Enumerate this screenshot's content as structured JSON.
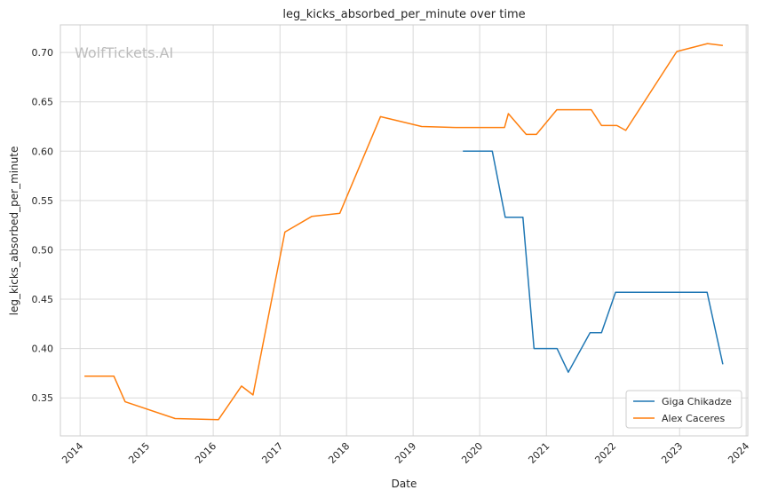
{
  "chart_data": {
    "type": "line",
    "title": "leg_kicks_absorbed_per_minute over time",
    "xlabel": "Date",
    "ylabel": "leg_kicks_absorbed_per_minute",
    "watermark": "WolfTickets.AI",
    "xlim": [
      "2013-09-15",
      "2024-01-10"
    ],
    "ylim": [
      0.3115,
      0.728
    ],
    "x_ticks": [
      "2014",
      "2015",
      "2016",
      "2017",
      "2018",
      "2019",
      "2020",
      "2021",
      "2022",
      "2023",
      "2024"
    ],
    "y_ticks": [
      "0.35",
      "0.40",
      "0.45",
      "0.50",
      "0.55",
      "0.60",
      "0.65",
      "0.70"
    ],
    "grid": true,
    "legend_position": "lower-right",
    "series": [
      {
        "name": "Giga Chikadze",
        "color": "#1f77b4",
        "points": [
          {
            "x": "2019-10-01",
            "y": 0.6
          },
          {
            "x": "2020-03-10",
            "y": 0.6
          },
          {
            "x": "2020-05-20",
            "y": 0.533
          },
          {
            "x": "2020-08-25",
            "y": 0.533
          },
          {
            "x": "2020-10-25",
            "y": 0.4
          },
          {
            "x": "2021-02-28",
            "y": 0.4
          },
          {
            "x": "2021-05-01",
            "y": 0.376
          },
          {
            "x": "2021-08-28",
            "y": 0.416
          },
          {
            "x": "2021-10-30",
            "y": 0.416
          },
          {
            "x": "2022-01-15",
            "y": 0.457
          },
          {
            "x": "2023-06-01",
            "y": 0.457
          },
          {
            "x": "2023-08-26",
            "y": 0.384
          }
        ]
      },
      {
        "name": "Alex Caceres",
        "color": "#ff7f0e",
        "points": [
          {
            "x": "2014-01-25",
            "y": 0.372
          },
          {
            "x": "2014-07-05",
            "y": 0.372
          },
          {
            "x": "2014-09-05",
            "y": 0.346
          },
          {
            "x": "2015-06-06",
            "y": 0.329
          },
          {
            "x": "2016-01-30",
            "y": 0.328
          },
          {
            "x": "2016-06-04",
            "y": 0.362
          },
          {
            "x": "2016-08-06",
            "y": 0.353
          },
          {
            "x": "2017-01-28",
            "y": 0.518
          },
          {
            "x": "2017-06-25",
            "y": 0.534
          },
          {
            "x": "2017-11-25",
            "y": 0.537
          },
          {
            "x": "2018-07-06",
            "y": 0.635
          },
          {
            "x": "2019-02-17",
            "y": 0.625
          },
          {
            "x": "2019-08-25",
            "y": 0.624
          },
          {
            "x": "2020-05-16",
            "y": 0.624
          },
          {
            "x": "2020-06-06",
            "y": 0.638
          },
          {
            "x": "2020-09-12",
            "y": 0.617
          },
          {
            "x": "2020-11-07",
            "y": 0.617
          },
          {
            "x": "2021-02-27",
            "y": 0.642
          },
          {
            "x": "2021-09-04",
            "y": 0.642
          },
          {
            "x": "2021-10-30",
            "y": 0.626
          },
          {
            "x": "2022-01-22",
            "y": 0.626
          },
          {
            "x": "2022-03-12",
            "y": 0.621
          },
          {
            "x": "2022-12-17",
            "y": 0.701
          },
          {
            "x": "2023-06-03",
            "y": 0.709
          },
          {
            "x": "2023-08-26",
            "y": 0.707
          }
        ]
      }
    ]
  }
}
